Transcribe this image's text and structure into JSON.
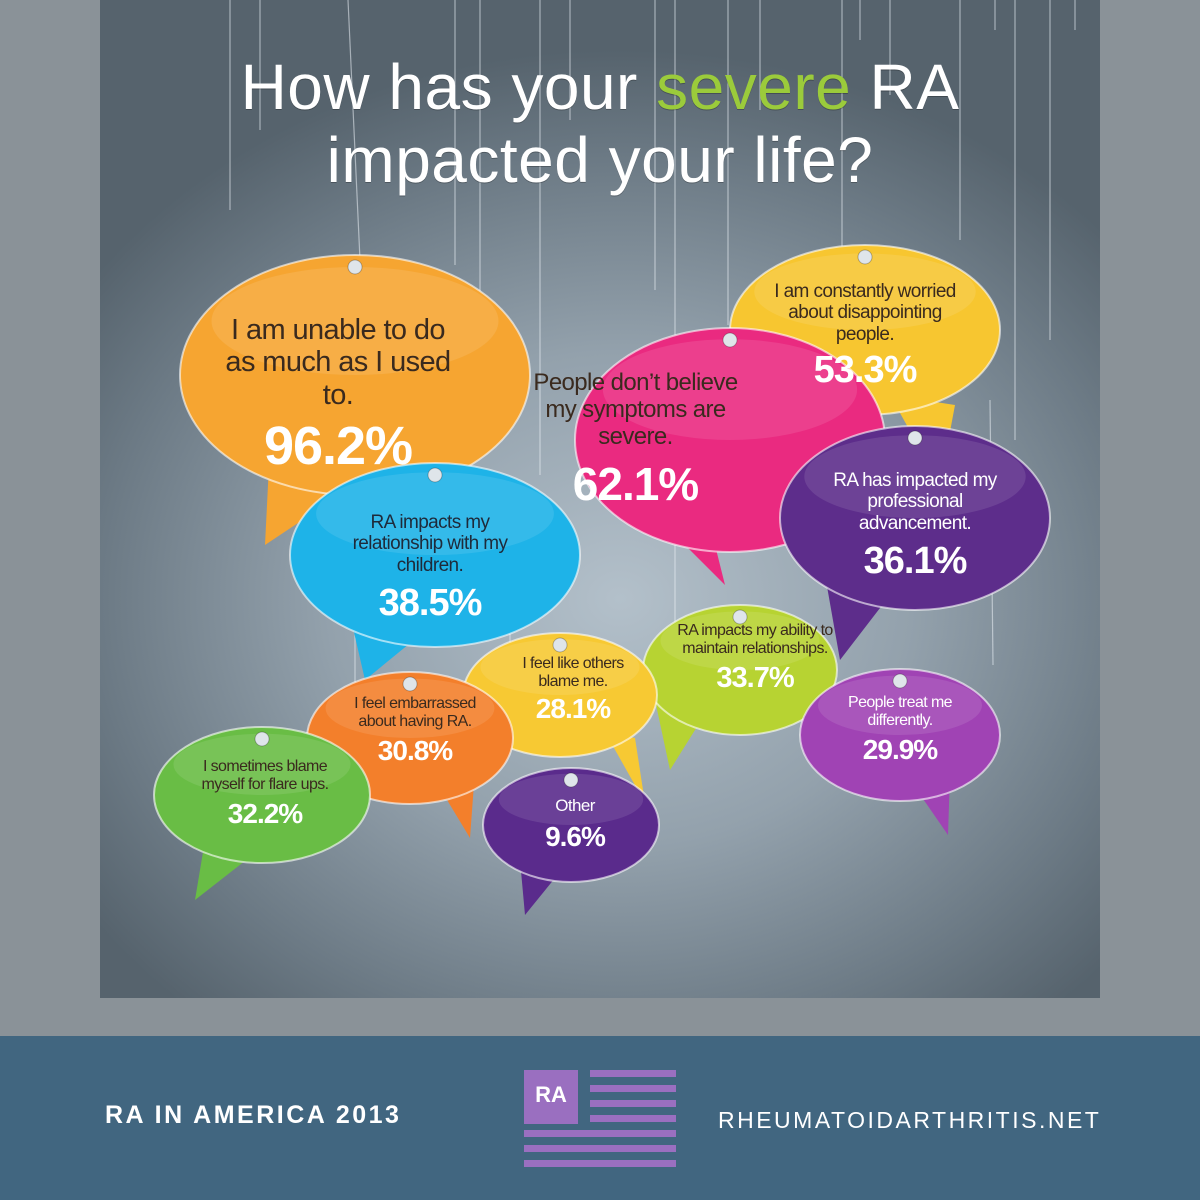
{
  "headline": {
    "line1_before": "How has your",
    "line1_accent": "severe",
    "line1_after": "RA",
    "line2": "impacted your life?"
  },
  "bubbles": [
    {
      "id": "unable",
      "text": "I am unable to do as much as I used to.",
      "percent": "96.2%",
      "color": "#f6a531"
    },
    {
      "id": "disappointing",
      "text": "I am constantly worried about disappointing people.",
      "percent": "53.3%",
      "color": "#f7c630"
    },
    {
      "id": "believe",
      "text": "People don’t believe my symptoms are severe.",
      "percent": "62.1%",
      "color": "#ea2a80"
    },
    {
      "id": "professional",
      "text": "RA has impacted my professional advancement.",
      "percent": "36.1%",
      "color": "#5d2d8b"
    },
    {
      "id": "children",
      "text": "RA impacts my relationship with my children.",
      "percent": "38.5%",
      "color": "#1eb3e8"
    },
    {
      "id": "maintain",
      "text": "RA impacts my ability to maintain relationships.",
      "percent": "33.7%",
      "color": "#b7d332"
    },
    {
      "id": "blame-others",
      "text": "I feel like others blame me.",
      "percent": "28.1%",
      "color": "#f7c933"
    },
    {
      "id": "embarrassed",
      "text": "I feel embarrassed about having RA.",
      "percent": "30.8%",
      "color": "#f37f2b"
    },
    {
      "id": "treat",
      "text": "People treat me differently.",
      "percent": "29.9%",
      "color": "#a043b4"
    },
    {
      "id": "blame-self",
      "text": "I sometimes blame myself for flare ups.",
      "percent": "32.2%",
      "color": "#69bd45"
    },
    {
      "id": "other",
      "text": "Other",
      "percent": "9.6%",
      "color": "#5a2b8c"
    }
  ],
  "footer": {
    "left": "RA IN AMERICA 2013",
    "logo": "RA",
    "right": "RHEUMATOIDARTHRITIS.NET",
    "background": "#416680",
    "logo_color": "#9a6fc0"
  }
}
